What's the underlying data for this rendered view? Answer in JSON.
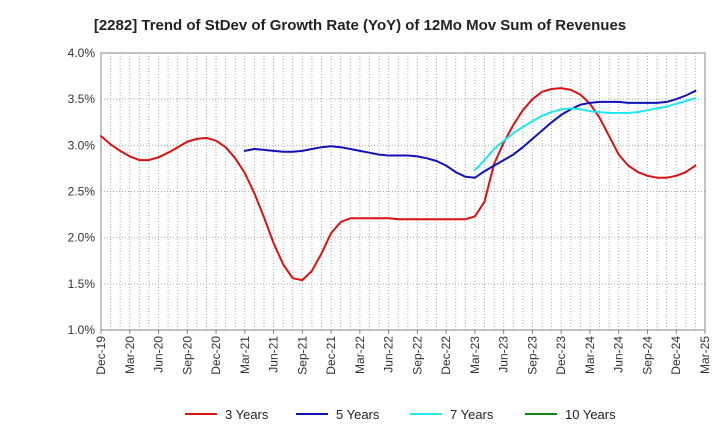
{
  "chart_data": {
    "type": "line",
    "title": "[2282]  Trend of StDev of Growth Rate (YoY) of 12Mo Mov Sum of Revenues",
    "xlabel": "",
    "ylabel": "",
    "ylim": [
      1.0,
      4.0
    ],
    "yticks": [
      "1.0%",
      "1.5%",
      "2.0%",
      "2.5%",
      "3.0%",
      "3.5%",
      "4.0%"
    ],
    "xlim": [
      0,
      63
    ],
    "xticks": [
      "Dec-19",
      "Mar-20",
      "Jun-20",
      "Sep-20",
      "Dec-20",
      "Mar-21",
      "Jun-21",
      "Sep-21",
      "Dec-21",
      "Mar-22",
      "Jun-22",
      "Sep-22",
      "Dec-22",
      "Mar-23",
      "Jun-23",
      "Sep-23",
      "Dec-23",
      "Mar-24",
      "Jun-24",
      "Sep-24",
      "Dec-24",
      "Mar-25"
    ],
    "grid": true,
    "legend_position": "bottom",
    "series": [
      {
        "name": "3 Years",
        "color": "#dd1111",
        "x": [
          0,
          1,
          2,
          3,
          4,
          5,
          6,
          7,
          8,
          9,
          10,
          11,
          12,
          13,
          14,
          15,
          16,
          17,
          18,
          19,
          20,
          21,
          22,
          23,
          24,
          25,
          26,
          27,
          28,
          29,
          30,
          31,
          32,
          33,
          34,
          35,
          36,
          37,
          38,
          39,
          40,
          41,
          42,
          43,
          44,
          45,
          46,
          47,
          48,
          49,
          50,
          51,
          52,
          53,
          54,
          55,
          56,
          57,
          58,
          59,
          60,
          61,
          62,
          63
        ],
        "values": [
          3.1,
          3.01,
          2.94,
          2.88,
          2.84,
          2.84,
          2.87,
          2.92,
          2.98,
          3.04,
          3.07,
          3.08,
          3.05,
          2.98,
          2.86,
          2.7,
          2.48,
          2.22,
          1.94,
          1.71,
          1.56,
          1.54,
          1.64,
          1.83,
          2.05,
          2.17,
          2.21,
          2.21,
          2.21,
          2.21,
          2.21,
          2.2,
          2.2,
          2.2,
          2.2,
          2.2,
          2.2,
          2.2,
          2.2,
          2.23,
          2.39,
          2.8,
          3.03,
          3.22,
          3.38,
          3.5,
          3.58,
          3.61,
          3.62,
          3.6,
          3.55,
          3.45,
          3.3,
          3.1,
          2.9,
          2.78,
          2.71,
          2.67,
          2.65,
          2.65,
          2.67,
          2.71,
          2.78,
          null
        ]
      },
      {
        "name": "5 Years",
        "color": "#1111bb",
        "x": [
          0,
          1,
          2,
          3,
          4,
          5,
          6,
          7,
          8,
          9,
          10,
          11,
          12,
          13,
          14,
          15,
          16,
          17,
          18,
          19,
          20,
          21,
          22,
          23,
          24,
          25,
          26,
          27,
          28,
          29,
          30,
          31,
          32,
          33,
          34,
          35,
          36,
          37,
          38,
          39,
          40,
          41,
          42,
          43,
          44,
          45,
          46,
          47,
          48,
          49,
          50,
          51,
          52,
          53,
          54,
          55,
          56,
          57,
          58,
          59,
          60,
          61,
          62,
          63
        ],
        "values": [
          null,
          null,
          null,
          null,
          null,
          null,
          null,
          null,
          null,
          null,
          null,
          null,
          null,
          null,
          null,
          2.94,
          2.96,
          2.95,
          2.94,
          2.93,
          2.93,
          2.94,
          2.96,
          2.98,
          2.99,
          2.98,
          2.96,
          2.94,
          2.92,
          2.9,
          2.89,
          2.89,
          2.89,
          2.88,
          2.86,
          2.83,
          2.78,
          2.71,
          2.66,
          2.65,
          2.72,
          2.78,
          2.84,
          2.9,
          2.98,
          3.07,
          3.16,
          3.25,
          3.33,
          3.39,
          3.44,
          3.46,
          3.47,
          3.47,
          3.47,
          3.46,
          3.46,
          3.46,
          3.46,
          3.47,
          3.5,
          3.54,
          3.59,
          null
        ]
      },
      {
        "name": "7 Years",
        "color": "#22e8ee",
        "x": [
          0,
          1,
          2,
          3,
          4,
          5,
          6,
          7,
          8,
          9,
          10,
          11,
          12,
          13,
          14,
          15,
          16,
          17,
          18,
          19,
          20,
          21,
          22,
          23,
          24,
          25,
          26,
          27,
          28,
          29,
          30,
          31,
          32,
          33,
          34,
          35,
          36,
          37,
          38,
          39,
          40,
          41,
          42,
          43,
          44,
          45,
          46,
          47,
          48,
          49,
          50,
          51,
          52,
          53,
          54,
          55,
          56,
          57,
          58,
          59,
          60,
          61,
          62,
          63
        ],
        "values": [
          null,
          null,
          null,
          null,
          null,
          null,
          null,
          null,
          null,
          null,
          null,
          null,
          null,
          null,
          null,
          null,
          null,
          null,
          null,
          null,
          null,
          null,
          null,
          null,
          null,
          null,
          null,
          null,
          null,
          null,
          null,
          null,
          null,
          null,
          null,
          null,
          null,
          null,
          null,
          2.73,
          2.84,
          2.96,
          3.05,
          3.13,
          3.2,
          3.26,
          3.32,
          3.36,
          3.39,
          3.4,
          3.39,
          3.37,
          3.36,
          3.35,
          3.35,
          3.35,
          3.36,
          3.38,
          3.4,
          3.42,
          3.45,
          3.48,
          3.51,
          null
        ]
      },
      {
        "name": "10 Years",
        "color": "#118811",
        "x": [],
        "values": []
      }
    ]
  }
}
